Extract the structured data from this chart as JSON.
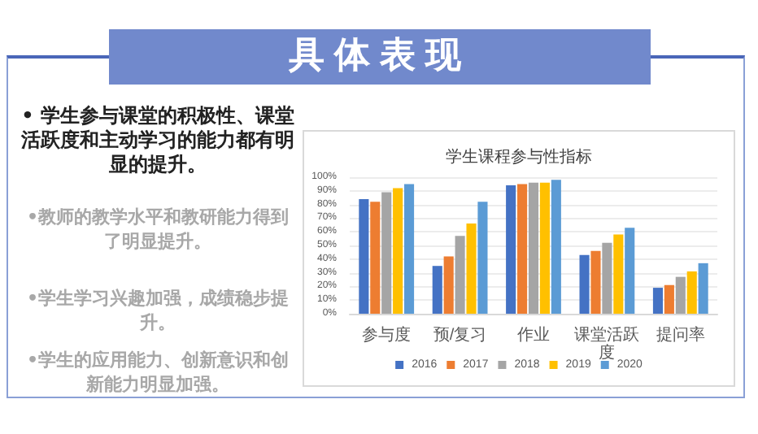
{
  "chart_data": {
    "type": "bar",
    "title": "学生课程参与性指标",
    "annotations": [
      "具体表现",
      "• 学生参与课堂的积极性、课堂活跃度和主动学习的能力都有明显的提升。",
      "•教师的教学水平和教研能力得到了明显提升。",
      "•学生学习兴趣加强，成绩稳步提升。",
      "•学生的应用能力、创新意识和创新能力明显加强。"
    ],
    "categories": [
      "参与度",
      "预/复习",
      "作业",
      "课堂活跃度",
      "提问率"
    ],
    "series": [
      {
        "name": "2016",
        "color": "#4472c4",
        "values": [
          84,
          35,
          94,
          43,
          19
        ]
      },
      {
        "name": "2017",
        "color": "#ed7d31",
        "values": [
          82,
          42,
          95,
          46,
          21
        ]
      },
      {
        "name": "2018",
        "color": "#a5a5a5",
        "values": [
          89,
          57,
          96,
          52,
          27
        ]
      },
      {
        "name": "2019",
        "color": "#ffc000",
        "values": [
          92,
          66,
          96,
          58,
          31
        ]
      },
      {
        "name": "2020",
        "color": "#5b9bd5",
        "values": [
          95,
          82,
          98,
          63,
          37
        ]
      }
    ],
    "ylim": [
      0,
      100
    ],
    "yticks": [
      {
        "value": 0,
        "label": "0%"
      },
      {
        "value": 10,
        "label": "10%"
      },
      {
        "value": 20,
        "label": "20%"
      },
      {
        "value": 30,
        "label": "30%"
      },
      {
        "value": 40,
        "label": "40%"
      },
      {
        "value": 50,
        "label": "50%"
      },
      {
        "value": 60,
        "label": "60%"
      },
      {
        "value": 70,
        "label": "70%"
      },
      {
        "value": 80,
        "label": "80%"
      },
      {
        "value": 90,
        "label": "90%"
      },
      {
        "value": 100,
        "label": "100%"
      }
    ],
    "grid": "y",
    "legend": "bottom"
  }
}
